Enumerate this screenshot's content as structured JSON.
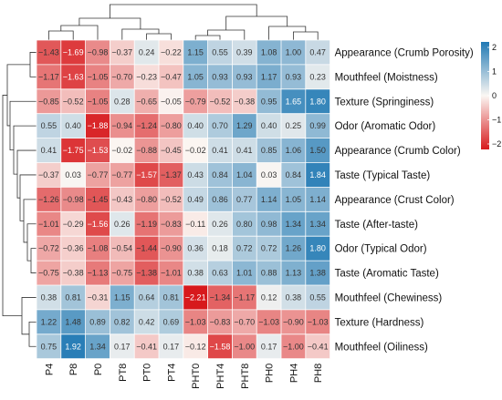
{
  "chart_data": {
    "type": "heatmap",
    "columns": [
      "P4",
      "P8",
      "P0",
      "PT8",
      "PT0",
      "PT4",
      "PHT0",
      "PHT4",
      "PHT8",
      "PH0",
      "PH4",
      "PH8"
    ],
    "rows": [
      "Appearance (Crumb Porosity)",
      "Mouthfeel  (Moistness)",
      "Texture (Springiness)",
      "Odor (Aromatic Odor)",
      "Appearance (Crumb Color)",
      "Taste (Typical Taste)",
      "Appearance (Crust Color)",
      "Taste (After-taste)",
      "Odor (Typical Odor)",
      "Taste (Aromatic Taste)",
      "Mouthfeel (Chewiness)",
      "Texture (Hardness)",
      "Mouthfeel (Oiliness)"
    ],
    "values": [
      [
        -1.43,
        -1.69,
        -0.98,
        -0.37,
        0.24,
        -0.22,
        1.15,
        0.55,
        0.39,
        1.08,
        1.0,
        0.47
      ],
      [
        -1.17,
        -1.63,
        -1.05,
        -0.7,
        -0.23,
        -0.47,
        1.05,
        0.93,
        0.93,
        1.17,
        0.93,
        0.23
      ],
      [
        -0.85,
        -0.52,
        -1.05,
        0.28,
        -0.65,
        -0.05,
        -0.79,
        -0.52,
        -0.38,
        0.95,
        1.65,
        1.8
      ],
      [
        0.55,
        0.4,
        -1.88,
        -0.94,
        -1.24,
        -0.8,
        0.4,
        0.7,
        1.29,
        0.4,
        0.25,
        0.99
      ],
      [
        0.41,
        -1.75,
        -1.53,
        -0.02,
        -0.88,
        -0.45,
        -0.02,
        0.41,
        0.41,
        0.85,
        1.06,
        1.5
      ],
      [
        -0.37,
        0.03,
        -0.77,
        -0.77,
        -1.57,
        -1.37,
        0.43,
        0.84,
        1.04,
        0.03,
        0.84,
        1.84
      ],
      [
        -1.26,
        -0.98,
        -1.45,
        -0.43,
        -0.8,
        -0.52,
        0.49,
        0.86,
        0.77,
        1.14,
        1.05,
        1.14
      ],
      [
        -1.01,
        -0.29,
        -1.56,
        0.26,
        -1.19,
        -0.83,
        -0.11,
        0.26,
        0.8,
        0.98,
        1.34,
        1.34
      ],
      [
        -0.72,
        -0.36,
        -1.08,
        -0.54,
        -1.44,
        -0.9,
        0.36,
        0.18,
        0.72,
        0.72,
        1.26,
        1.8
      ],
      [
        -0.75,
        -0.38,
        -1.13,
        -0.75,
        -1.38,
        -1.01,
        0.38,
        0.63,
        1.01,
        0.88,
        1.13,
        1.38
      ],
      [
        0.38,
        0.81,
        -0.31,
        1.15,
        0.64,
        0.81,
        -2.21,
        -1.34,
        -1.17,
        0.12,
        0.38,
        0.55
      ],
      [
        1.22,
        1.48,
        0.89,
        0.82,
        0.42,
        0.69,
        -1.03,
        -0.83,
        -0.7,
        -1.03,
        -0.9,
        -1.03
      ],
      [
        0.75,
        1.92,
        1.34,
        0.17,
        -0.41,
        0.17,
        -0.12,
        -1.58,
        -1.0,
        0.17,
        -1.0,
        -0.41
      ]
    ],
    "colorbar": {
      "ticks": [
        2,
        1,
        0,
        -1,
        -2
      ],
      "range": [
        -2,
        2
      ]
    },
    "colors": {
      "low": "#d7191c",
      "mid": "#fbf7f3",
      "high": "#2079b4"
    },
    "dendrograms": {
      "columns": "top",
      "rows": "left"
    }
  }
}
